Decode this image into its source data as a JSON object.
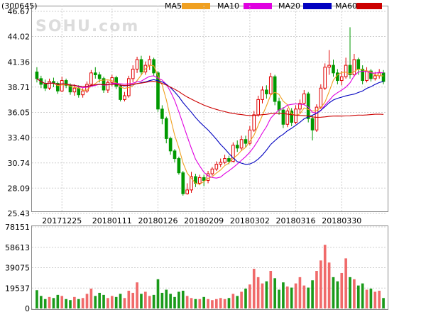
{
  "chart_data": [
    {
      "type": "candlestick",
      "symbol": "(300645)",
      "watermark": "SOHU.com",
      "y_ticks": [
        46.67,
        44.02,
        41.36,
        38.71,
        36.05,
        33.4,
        30.74,
        28.09,
        25.43
      ],
      "ylim": [
        25.43,
        46.67
      ],
      "x_ticks": [
        {
          "label": "20171225",
          "index": 6
        },
        {
          "label": "20180111",
          "index": 18
        },
        {
          "label": "20180126",
          "index": 29
        },
        {
          "label": "20180209",
          "index": 40
        },
        {
          "label": "20180302",
          "index": 51
        },
        {
          "label": "20180316",
          "index": 62
        },
        {
          "label": "20180330",
          "index": 73
        }
      ],
      "legend": [
        {
          "name": "MA5",
          "color": "#f0a020"
        },
        {
          "name": "MA10",
          "color": "#e000e0"
        },
        {
          "name": "MA20",
          "color": "#0000c0"
        },
        {
          "name": "MA60",
          "color": "#cc0000"
        }
      ],
      "up_color": "#e00000",
      "down_color": "#009900",
      "candles": [
        [
          40.3,
          39.6,
          40.8,
          39.2
        ],
        [
          39.6,
          39.0,
          39.9,
          38.6
        ],
        [
          39.0,
          38.6,
          39.5,
          38.3
        ],
        [
          38.6,
          39.3,
          39.6,
          38.4
        ],
        [
          39.3,
          39.1,
          39.7,
          38.7
        ],
        [
          39.1,
          38.3,
          39.3,
          38.0
        ],
        [
          38.3,
          39.4,
          39.8,
          38.2
        ],
        [
          39.4,
          38.9,
          39.6,
          38.6
        ],
        [
          38.9,
          38.2,
          39.1,
          37.9
        ],
        [
          38.2,
          38.6,
          39.0,
          37.8
        ],
        [
          38.6,
          37.9,
          38.9,
          37.6
        ],
        [
          37.9,
          38.3,
          38.6,
          37.6
        ],
        [
          38.3,
          39.0,
          39.3,
          38.1
        ],
        [
          39.0,
          40.2,
          40.5,
          38.9
        ],
        [
          40.2,
          40.0,
          40.8,
          39.6
        ],
        [
          40.0,
          39.6,
          40.3,
          39.2
        ],
        [
          39.6,
          38.4,
          39.8,
          38.1
        ],
        [
          38.4,
          39.2,
          39.4,
          38.1
        ],
        [
          39.2,
          39.7,
          40.0,
          38.8
        ],
        [
          39.7,
          38.8,
          39.9,
          38.5
        ],
        [
          38.8,
          37.4,
          39.0,
          37.2
        ],
        [
          37.4,
          37.8,
          38.2,
          37.2
        ],
        [
          37.8,
          39.6,
          39.9,
          37.6
        ],
        [
          39.6,
          40.6,
          41.0,
          39.2
        ],
        [
          40.6,
          41.6,
          41.9,
          40.2
        ],
        [
          41.6,
          40.3,
          42.0,
          40.0
        ],
        [
          40.3,
          41.0,
          41.4,
          40.0
        ],
        [
          41.0,
          41.6,
          42.0,
          40.5
        ],
        [
          41.6,
          40.2,
          41.8,
          39.9
        ],
        [
          40.2,
          36.4,
          40.4,
          36.1
        ],
        [
          36.4,
          35.4,
          36.8,
          34.8
        ],
        [
          35.4,
          33.3,
          35.6,
          32.8
        ],
        [
          33.3,
          32.0,
          33.5,
          31.6
        ],
        [
          32.0,
          31.2,
          32.2,
          30.8
        ],
        [
          31.2,
          29.7,
          31.4,
          29.5
        ],
        [
          29.7,
          27.5,
          29.9,
          27.3
        ],
        [
          27.5,
          27.9,
          28.6,
          27.4
        ],
        [
          27.9,
          29.3,
          29.8,
          27.6
        ],
        [
          29.3,
          28.6,
          29.6,
          28.2
        ],
        [
          28.6,
          29.2,
          29.5,
          28.4
        ],
        [
          29.2,
          28.9,
          29.5,
          28.3
        ],
        [
          28.9,
          29.6,
          29.9,
          28.6
        ],
        [
          29.6,
          30.1,
          30.3,
          29.4
        ],
        [
          30.1,
          30.6,
          30.9,
          29.9
        ],
        [
          30.6,
          30.8,
          31.2,
          30.3
        ],
        [
          30.8,
          31.2,
          31.6,
          30.6
        ],
        [
          31.2,
          30.9,
          31.5,
          30.6
        ],
        [
          30.9,
          32.6,
          32.9,
          30.8
        ],
        [
          32.6,
          32.3,
          33.1,
          31.9
        ],
        [
          32.3,
          33.2,
          33.6,
          32.0
        ],
        [
          33.2,
          32.8,
          33.6,
          32.4
        ],
        [
          32.8,
          34.2,
          34.6,
          32.6
        ],
        [
          34.2,
          35.8,
          36.2,
          34.0
        ],
        [
          35.8,
          37.4,
          37.8,
          35.6
        ],
        [
          37.4,
          38.4,
          38.8,
          37.0
        ],
        [
          38.4,
          38.0,
          38.9,
          37.5
        ],
        [
          38.0,
          39.8,
          40.2,
          37.8
        ],
        [
          39.8,
          37.2,
          40.0,
          36.8
        ],
        [
          37.2,
          36.3,
          37.6,
          35.8
        ],
        [
          36.3,
          34.8,
          36.6,
          34.4
        ],
        [
          34.8,
          36.2,
          36.5,
          34.5
        ],
        [
          36.2,
          35.0,
          36.5,
          34.6
        ],
        [
          35.0,
          36.4,
          36.8,
          34.8
        ],
        [
          36.4,
          37.0,
          37.4,
          36.0
        ],
        [
          37.0,
          38.0,
          38.4,
          36.8
        ],
        [
          38.0,
          35.4,
          38.2,
          35.0
        ],
        [
          35.4,
          34.2,
          35.8,
          33.1
        ],
        [
          34.2,
          36.6,
          36.9,
          34.0
        ],
        [
          36.6,
          38.6,
          39.0,
          36.4
        ],
        [
          38.6,
          40.8,
          41.2,
          38.4
        ],
        [
          40.8,
          41.0,
          42.6,
          40.0
        ],
        [
          41.0,
          40.2,
          41.6,
          39.8
        ],
        [
          40.2,
          39.4,
          40.6,
          39.0
        ],
        [
          39.4,
          39.8,
          40.4,
          38.9
        ],
        [
          39.8,
          41.0,
          41.8,
          39.6
        ],
        [
          41.0,
          40.0,
          45.0,
          39.6
        ],
        [
          40.0,
          41.6,
          42.2,
          39.8
        ],
        [
          41.6,
          40.6,
          41.8,
          40.0
        ],
        [
          40.6,
          39.4,
          41.0,
          39.0
        ],
        [
          39.4,
          40.4,
          40.8,
          39.2
        ],
        [
          40.4,
          39.6,
          40.6,
          39.3
        ],
        [
          39.6,
          39.9,
          40.3,
          39.4
        ],
        [
          39.9,
          40.2,
          40.6,
          39.6
        ],
        [
          40.2,
          39.3,
          40.5,
          39.0
        ]
      ],
      "volume": {
        "y_ticks": [
          78151,
          58613,
          39075,
          19537,
          0
        ],
        "ylim": [
          0,
          78151
        ],
        "values": [
          17500,
          12000,
          9000,
          11000,
          10000,
          13000,
          12000,
          9000,
          8000,
          11000,
          9000,
          10000,
          14000,
          19000,
          12000,
          15000,
          13000,
          10000,
          12000,
          11000,
          14000,
          10000,
          17000,
          15000,
          25000,
          14000,
          16000,
          12000,
          13000,
          28000,
          15000,
          18000,
          14000,
          11000,
          16000,
          17000,
          12000,
          10000,
          9000,
          9000,
          11000,
          9000,
          8000,
          9000,
          10000,
          9000,
          10000,
          14000,
          12000,
          16000,
          19000,
          23000,
          38000,
          30000,
          24000,
          26000,
          36000,
          29000,
          18000,
          25000,
          21000,
          20000,
          24000,
          30000,
          22000,
          20000,
          27000,
          36000,
          46000,
          61000,
          44000,
          30000,
          26000,
          34000,
          48000,
          30000,
          28000,
          22000,
          24000,
          18000,
          19000,
          16000,
          17000,
          10000
        ]
      }
    }
  ]
}
